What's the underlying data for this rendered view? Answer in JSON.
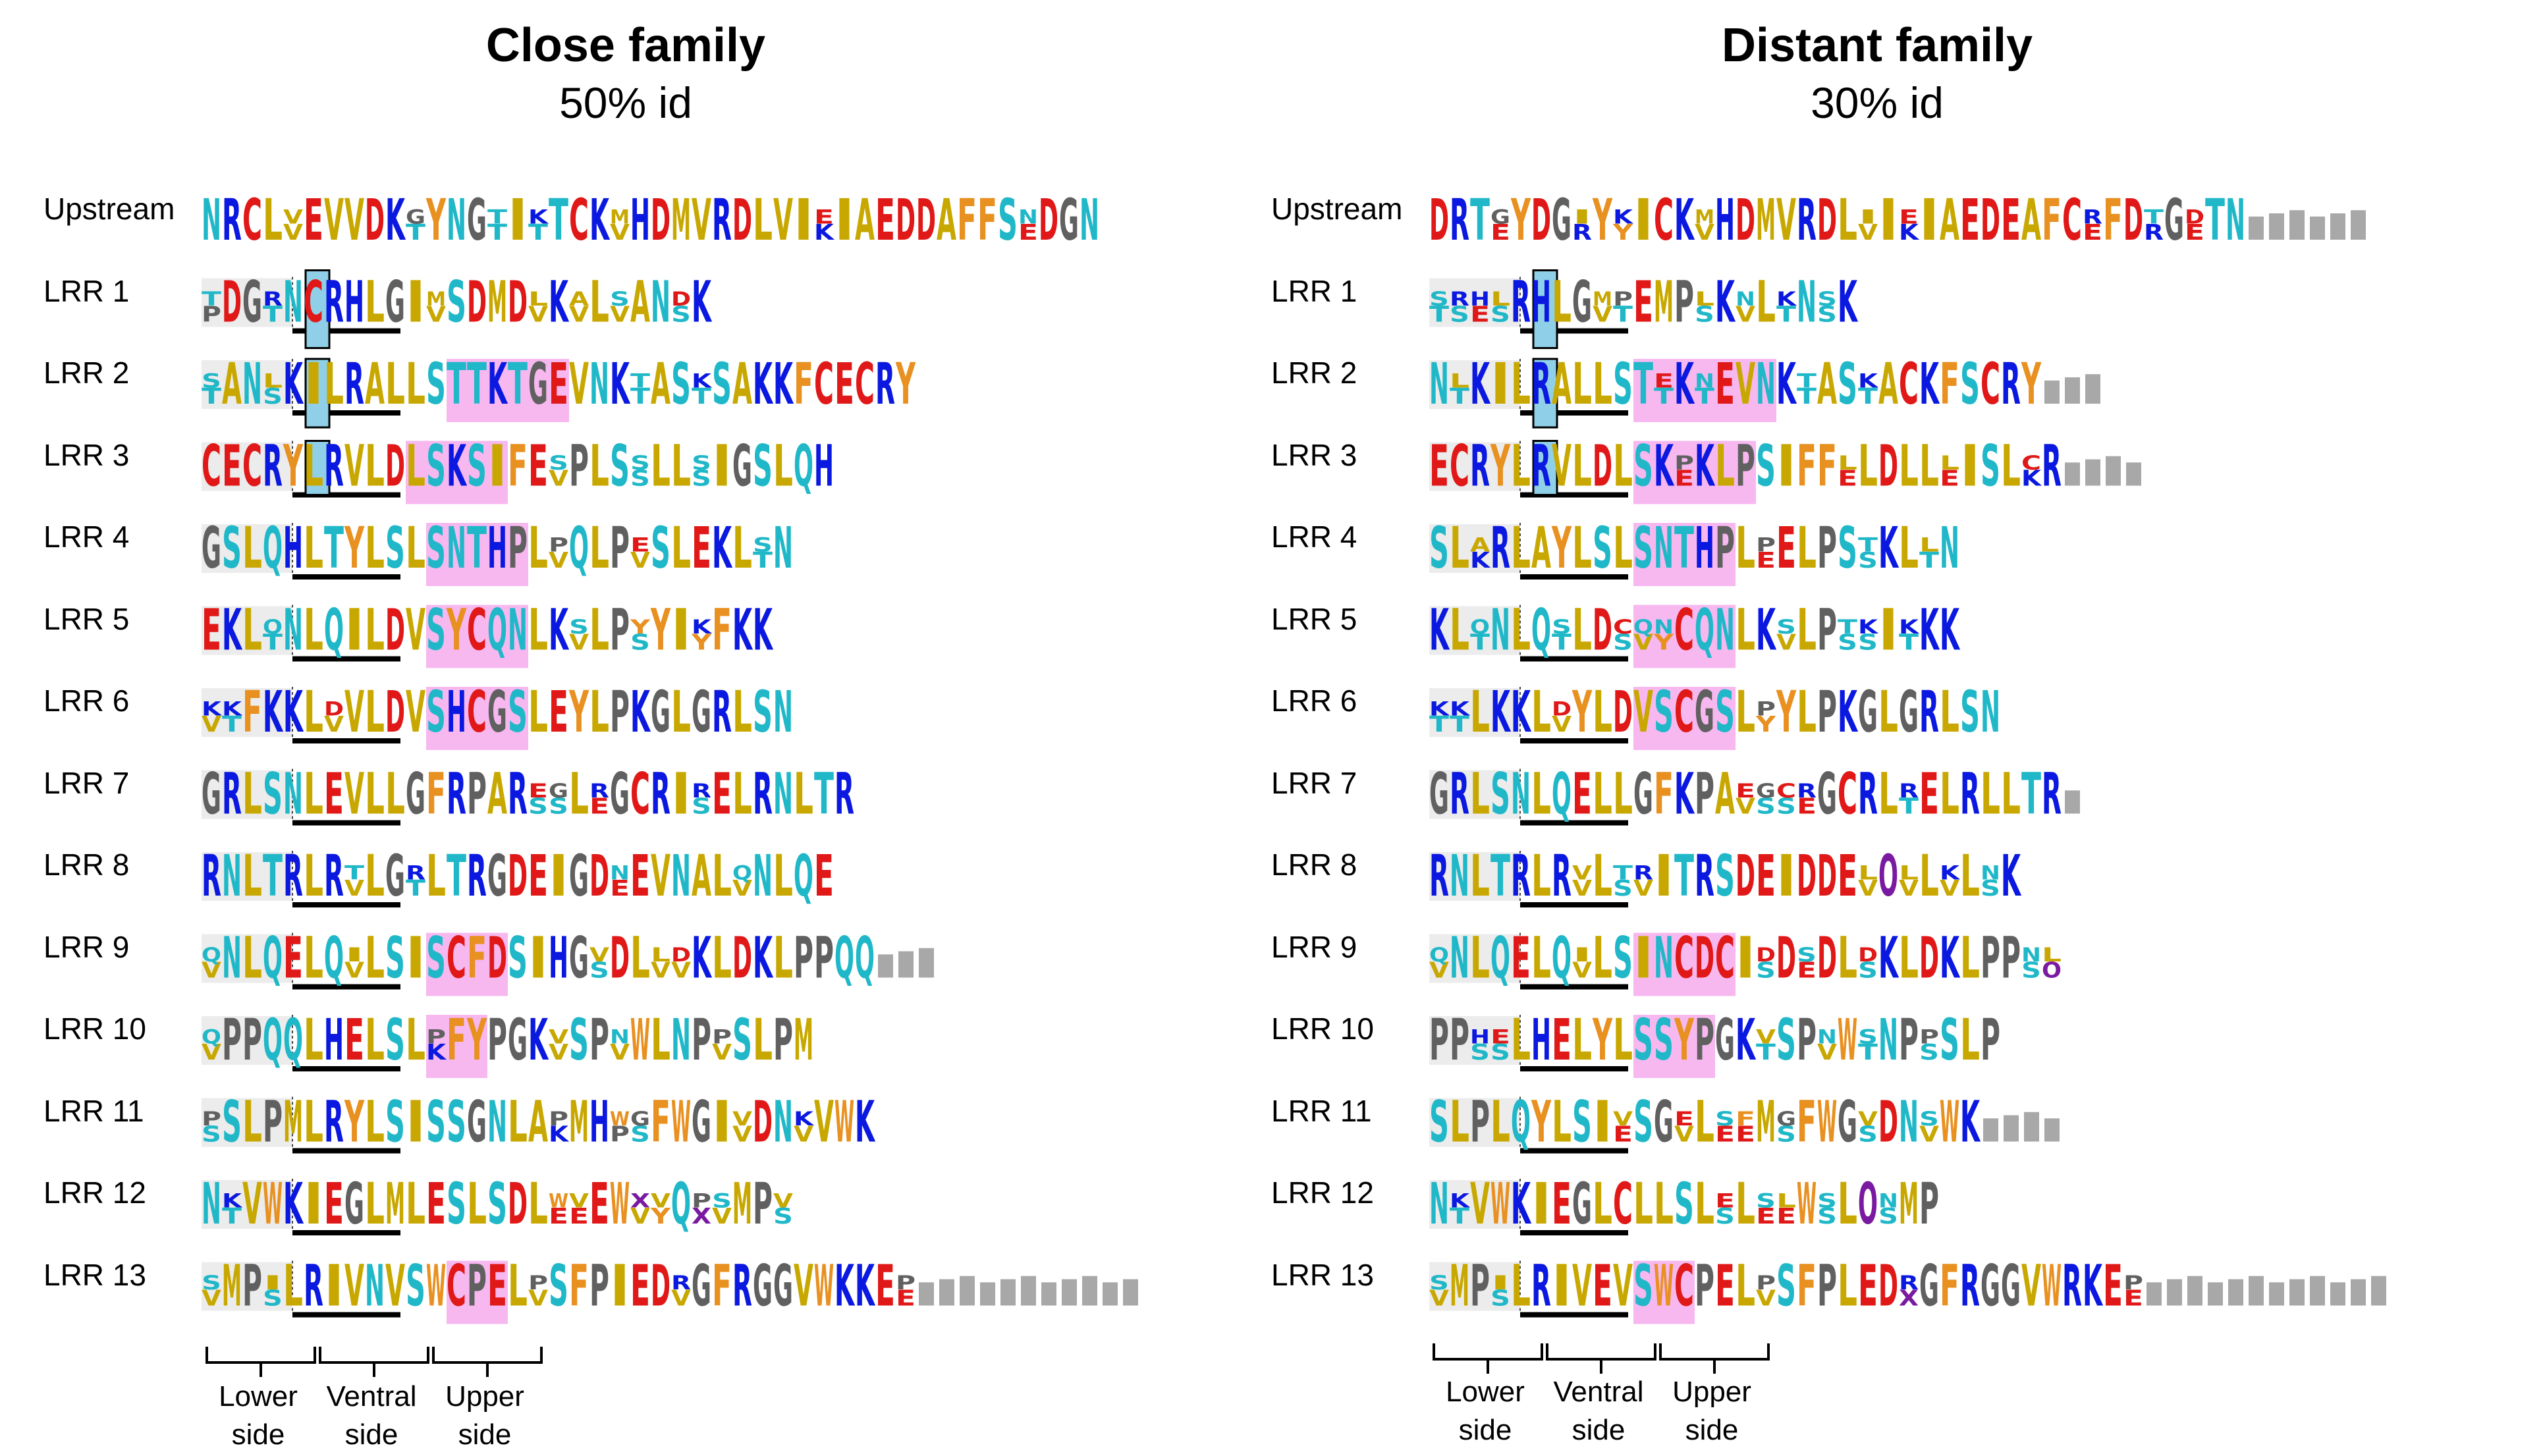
{
  "panels": [
    {
      "title": "Close family",
      "subtitle": "50% id",
      "rows": [
        {
          "label": "Upstream",
          "seq": "NRCLvEVVDKtYNGtItTCKvHDMVRDLVIkIAEDDAFFSeDGN",
          "pink": [],
          "blue": false,
          "gray_tail": 0
        },
        {
          "label": "LRR 1",
          "seq": "pDGtNCRHLGIvSDMDvKvLvANsK",
          "pink": [],
          "blue": true,
          "gray_tail": 0
        },
        {
          "label": "LRR 2",
          "seq": "tANsKILRALLSTTKTGEVNKtAStSAKKFCECRY",
          "pink": [
            12,
            18
          ],
          "blue": true,
          "gray_tail": 0
        },
        {
          "label": "LRR 3",
          "seq": "CECRYLRVLDLSKSIFEvPLSsLLsIGSLQH",
          "pink": [
            10,
            15
          ],
          "blue": true,
          "gray_tail": 0
        },
        {
          "label": "LRR 4",
          "seq": "GSLQHLTYLSLSNTHPLvQLPvSLEKLtN",
          "pink": [
            11,
            16
          ],
          "blue": false,
          "gray_tail": 0
        },
        {
          "label": "LRR 5",
          "seq": "EKLtNLQILDVSYCQNLKvLPsYIyFKK",
          "pink": [
            11,
            16
          ],
          "blue": false,
          "gray_tail": 0
        },
        {
          "label": "LRR 6",
          "seq": "vtFKKLvVLDVSHCGSLEYLPKGLGRLSN",
          "pink": [
            11,
            16
          ],
          "blue": false,
          "gray_tail": 0
        },
        {
          "label": "LRR 7",
          "seq": "GRLSNLEVLLGFRPARssLeGCRIsELRNLTR",
          "pink": [],
          "blue": false,
          "gray_tail": 0
        },
        {
          "label": "LRR 8",
          "seq": "RNLTRLRvLGtLTRGDEIGDeEVNALvNLQE",
          "pink": [],
          "blue": false,
          "gray_tail": 0
        },
        {
          "label": "LRR 9",
          "seq": "vNLQELQvLSISCFDSIHGsDLvvKLDKLPPQQ",
          "pink": [
            11,
            15
          ],
          "blue": false,
          "gray_tail": 3
        },
        {
          "label": "LRR 10",
          "seq": "vPPQQLHELSLkFYPGKvSPvWLNPvSLPM",
          "pink": [
            11,
            14
          ],
          "blue": false,
          "gray_tail": 0
        },
        {
          "label": "LRR 11",
          "seq": "sSLPMLRYLSISSGNLAkMHpsFWGIvDNvVWK",
          "pink": [],
          "blue": false,
          "gray_tail": 0
        },
        {
          "label": "LRR 12",
          "seq": "NtVWKIEGLMLESLSDLeeEWvyQxvMPs",
          "pink": [],
          "blue": false,
          "gray_tail": 0
        },
        {
          "label": "LRR 13",
          "seq": "vMPsLRIVNVSWCPELvSFPIEDvGFRGGVWKKEe",
          "pink": [
            12,
            15
          ],
          "blue": false,
          "gray_tail": 11
        }
      ],
      "brackets": [
        "Lower side",
        "Ventral side",
        "Upper side"
      ]
    },
    {
      "title": "Distant family",
      "subtitle": "30% id",
      "rows": [
        {
          "label": "Upstream",
          "seq": "DRTeYDGrYyICKvHDMVRDLvIkIAEDEAFCeFDrGeTN",
          "pink": [],
          "blue": false,
          "gray_tail": 6
        },
        {
          "label": "LRR 1",
          "seq": "tsesRHLGvtEMPsKvLtNsK",
          "pink": [],
          "blue": true,
          "gray_tail": 0
        },
        {
          "label": "LRR 2",
          "seq": "NtKILRALLSTtKtEVNKtAStACKFSCRY",
          "pink": [
            10,
            17
          ],
          "blue": true,
          "gray_tail": 3
        },
        {
          "label": "LRR 3",
          "seq": "ECRYLRVLDLSKeKLPSIFFeLDLLeISLkR",
          "pink": [
            10,
            16
          ],
          "blue": true,
          "gray_tail": 4
        },
        {
          "label": "LRR 4",
          "seq": "SLkRLAYLSLSNTHPLeELPSsKLtN",
          "pink": [
            10,
            15
          ],
          "blue": false,
          "gray_tail": 0
        },
        {
          "label": "LRR 5",
          "seq": "KLtNLQtLDsvyCQNLKvLPssItKK",
          "pink": [
            10,
            15
          ],
          "blue": false,
          "gray_tail": 0
        },
        {
          "label": "LRR 6",
          "seq": "ttLKKLvYLDVSCGSLyYLPKGLGRLSN",
          "pink": [
            10,
            15
          ],
          "blue": false,
          "gray_tail": 0
        },
        {
          "label": "LRR 7",
          "seq": "GRLSNLQELLGFKPAvsseGCRLtELRLLTR",
          "pink": [],
          "blue": false,
          "gray_tail": 1
        },
        {
          "label": "LRR 8",
          "seq": "RNLTRLRvLsvITRSDEIDDEvOvLvLsK",
          "pink": [],
          "blue": false,
          "gray_tail": 0
        },
        {
          "label": "LRR 9",
          "seq": "vNLQELQvLSINCDCIsDeDLsKLDKLPPso",
          "pink": [
            10,
            15
          ],
          "blue": false,
          "gray_tail": 0
        },
        {
          "label": "LRR 10",
          "seq": "PPssLHELYLSSYPGKtSPvWtNPsSLP",
          "pink": [
            10,
            14
          ],
          "blue": false,
          "gray_tail": 0
        },
        {
          "label": "LRR 11",
          "seq": "SLPLQYLSIeSGvLeeMsFWGsDNvWK",
          "pink": [],
          "blue": false,
          "gray_tail": 4
        },
        {
          "label": "LRR 12",
          "seq": "NtVWKIEGLCLLSLsLeeWsLOsMP",
          "pink": [],
          "blue": false,
          "gray_tail": 0
        },
        {
          "label": "LRR 13",
          "seq": "vMPsLRIVEVSWCPELvSFPLEDxGFRGGVWRKEe",
          "pink": [
            10,
            13
          ],
          "blue": false,
          "gray_tail": 12
        }
      ],
      "brackets": [
        "Lower side",
        "Ventral side",
        "Upper side"
      ]
    }
  ],
  "bracket_labels": {
    "lower": [
      "Lower",
      "side"
    ],
    "ventral": [
      "Ventral",
      "side"
    ],
    "upper": [
      "Upper",
      "side"
    ]
  },
  "colors": {
    "hydrophobic": "#c8a800",
    "positive": "#0a18e0",
    "negative": "#e01818",
    "polar": "#20b8c8",
    "aromatic": "#e89020",
    "special": "#7a1aa0",
    "glycine": "#606060",
    "cysteine": "#e0c000",
    "gray_bar": "#a8a8a8",
    "pink": "#f7b8f0",
    "blue": "#8fd0e8",
    "lower_bg": "#ececec"
  }
}
